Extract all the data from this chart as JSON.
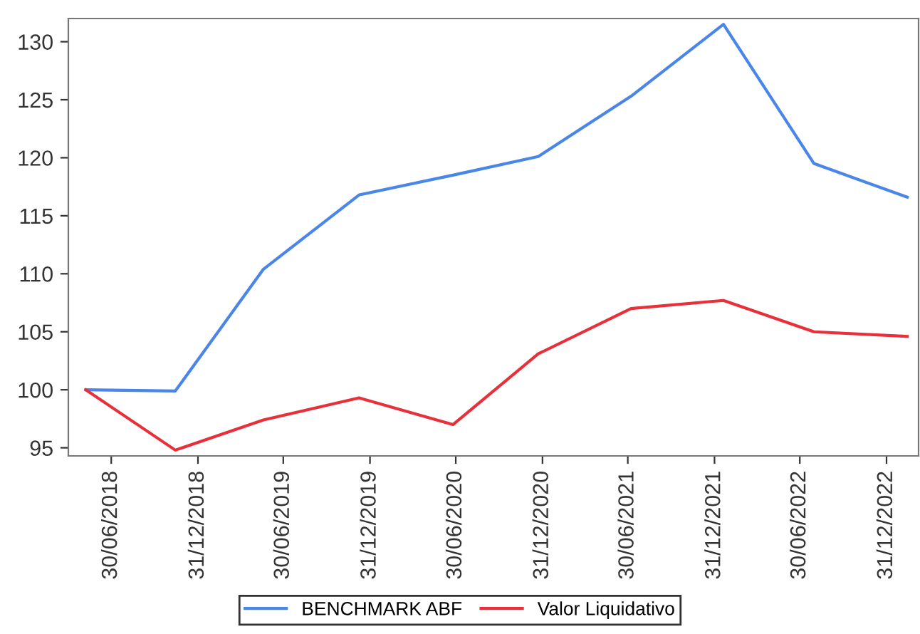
{
  "chart_data": {
    "type": "line",
    "x": [
      "2018-05-07",
      "2018-11-13",
      "2019-05-19",
      "2019-12-08",
      "2020-06-24",
      "2020-12-22",
      "2021-07-07",
      "2022-01-19",
      "2022-07-30",
      "2023-02-13"
    ],
    "series": [
      {
        "name": "BENCHMARK ABF",
        "color": "#4a86e8",
        "values": [
          100,
          99.9,
          110.4,
          116.8,
          118.5,
          120.1,
          125.3,
          131.5,
          119.5,
          116.6
        ]
      },
      {
        "name": "Valor Liquidativo",
        "color": "#e8303a",
        "values": [
          100,
          94.8,
          97.4,
          99.3,
          97.0,
          103.1,
          107.0,
          107.7,
          105.0,
          104.6
        ]
      }
    ],
    "xlim": [
      "2018-03-31",
      "2023-03-09"
    ],
    "xticks": [
      {
        "value": "2018-06-30",
        "label": "30/06/2018"
      },
      {
        "value": "2018-12-31",
        "label": "31/12/2018"
      },
      {
        "value": "2019-06-30",
        "label": "30/06/2019"
      },
      {
        "value": "2019-12-31",
        "label": "31/12/2019"
      },
      {
        "value": "2020-06-30",
        "label": "30/06/2020"
      },
      {
        "value": "2020-12-31",
        "label": "31/12/2020"
      },
      {
        "value": "2021-06-30",
        "label": "30/06/2021"
      },
      {
        "value": "2021-12-31",
        "label": "31/12/2021"
      },
      {
        "value": "2022-06-30",
        "label": "30/06/2022"
      },
      {
        "value": "2022-12-31",
        "label": "31/12/2022"
      }
    ],
    "ylim": [
      94.3,
      132
    ],
    "yticks": [
      95,
      100,
      105,
      110,
      115,
      120,
      125,
      130
    ],
    "grid": false,
    "legend": "bottom",
    "line_style": "solid",
    "marker": "none"
  }
}
